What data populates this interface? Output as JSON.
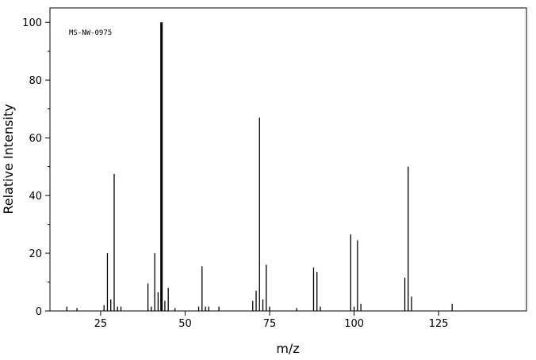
{
  "chart_data": {
    "type": "bar",
    "annotation": "MS-NW-0975",
    "x_label": "m/z",
    "y_label": "Relative Intensity",
    "x": [
      15,
      18,
      26,
      27,
      28,
      29,
      30,
      31,
      39,
      40,
      41,
      42,
      43,
      44,
      45,
      47,
      54,
      55,
      56,
      57,
      60,
      70,
      71,
      72,
      73,
      74,
      75,
      83,
      88,
      89,
      90,
      99,
      100,
      101,
      102,
      115,
      116,
      117,
      129
    ],
    "values": [
      1.5,
      1,
      2,
      20,
      4,
      47.5,
      1.5,
      1.5,
      9.5,
      1.5,
      20,
      6.5,
      100,
      3.5,
      8,
      1,
      1.5,
      15.5,
      1.5,
      1.5,
      1.5,
      3.5,
      7,
      67,
      4,
      16,
      1.5,
      1,
      15,
      13.5,
      1.5,
      26.5,
      1.5,
      24.5,
      2.5,
      11.5,
      50,
      5,
      2.5
    ],
    "color": "#000000",
    "xlim": [
      10,
      151
    ],
    "xticks": [
      25,
      50,
      75,
      100,
      125
    ],
    "ylim": [
      0,
      105
    ],
    "yticks": [
      0,
      20,
      40,
      60,
      80,
      100
    ]
  }
}
